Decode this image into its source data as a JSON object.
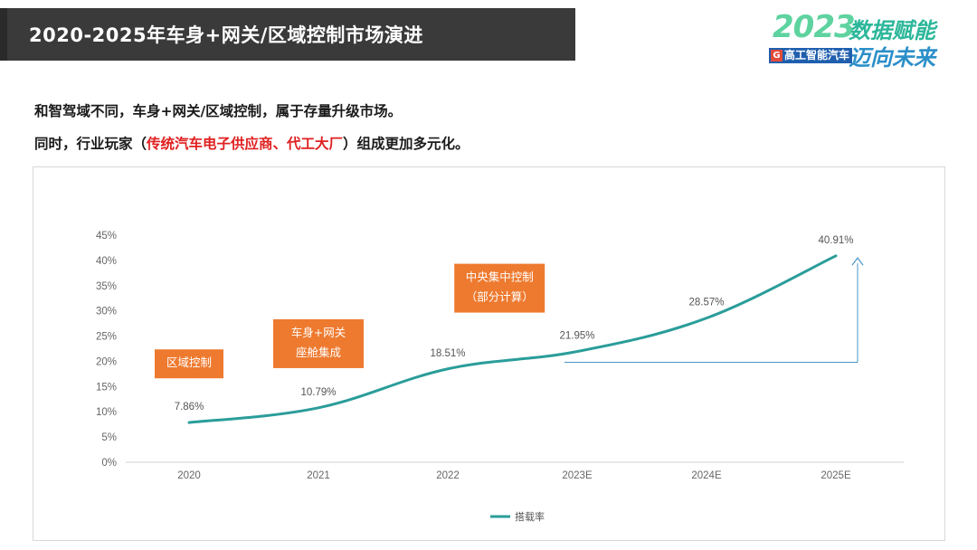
{
  "header": {
    "title": "2020-2025年车身+网关/区域控制市场演进"
  },
  "brand": {
    "year": "2023",
    "slogan_line1": "数据赋能",
    "slogan_line2": "迈向未来",
    "badge_letter": "G",
    "badge_text": "高工智能汽车",
    "colors": {
      "year": "#5ed3a0",
      "slogan1": "#2cb79a",
      "slogan2": "#2b8fc9",
      "badge": "#1f5fae"
    }
  },
  "intro": {
    "line1": "和智驾域不同，车身+网关/区域控制，属于存量升级市场。",
    "line2_prefix": "同时，行业玩家（",
    "line2_highlight": "传统汽车电子供应商、代工大厂",
    "line2_suffix": "）组成更加多元化。"
  },
  "chart_data": {
    "type": "line",
    "categories": [
      "2020",
      "2021",
      "2022",
      "2023E",
      "2024E",
      "2025E"
    ],
    "series": [
      {
        "name": "搭载率",
        "values": [
          7.86,
          10.79,
          18.51,
          21.95,
          28.57,
          40.91
        ],
        "color": "#2a9d9a"
      }
    ],
    "data_labels": [
      "7.86%",
      "10.79%",
      "18.51%",
      "21.95%",
      "28.57%",
      "40.91%"
    ],
    "y_ticks": [
      "0%",
      "5%",
      "10%",
      "15%",
      "20%",
      "25%",
      "30%",
      "35%",
      "40%",
      "45%"
    ],
    "ylim": [
      0,
      45
    ],
    "legend_position": "bottom",
    "annotations": [
      {
        "lines": [
          "区域控制"
        ],
        "category": "2020",
        "y_value": 19.5,
        "color": "#ee7a2f"
      },
      {
        "lines": [
          "车身+网关",
          "座舱集成"
        ],
        "category": "2021",
        "y_value": 23.5,
        "color": "#ee7a2f"
      },
      {
        "lines": [
          "中央集中控制",
          "（部分计算）"
        ],
        "category": "2023E",
        "y_value": 34.5,
        "color": "#ee7a2f",
        "x_offset_categories": -0.6
      }
    ],
    "growth_arrow": {
      "from_category": "2023E",
      "to_category": "2025E",
      "base_value": 19.8,
      "top_value": 40.5,
      "color": "#4a95c9"
    }
  }
}
